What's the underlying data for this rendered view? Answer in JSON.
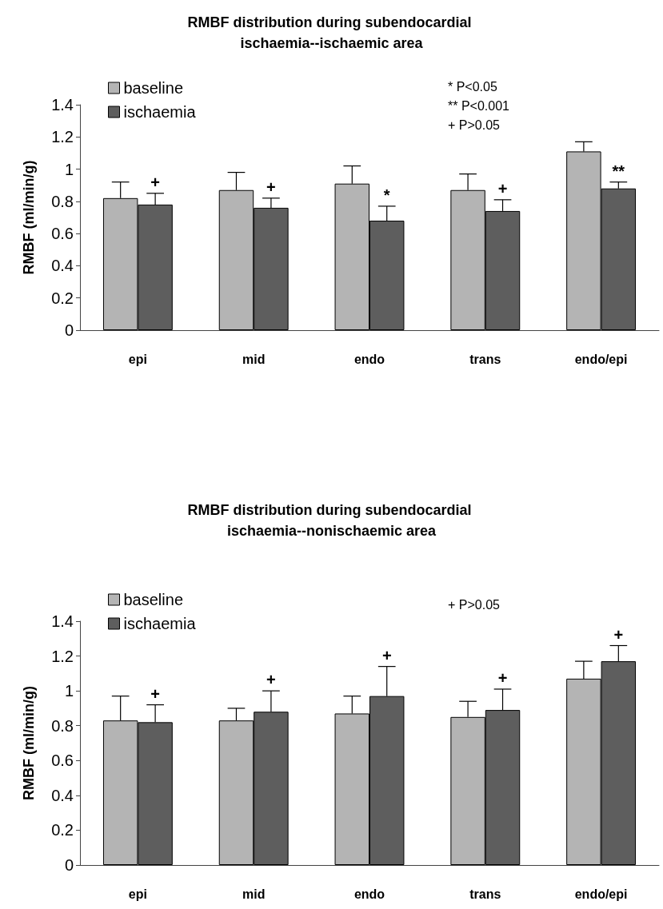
{
  "chart_data": [
    {
      "type": "bar",
      "title": "RMBF distribution during subendocardial ischaemia--ischaemic area",
      "ylabel": "RMBF (ml/min/g)",
      "categories": [
        "epi",
        "mid",
        "endo",
        "trans",
        "endo/epi"
      ],
      "series": [
        {
          "name": "baseline",
          "color": "#b4b4b4",
          "values": [
            0.82,
            0.87,
            0.91,
            0.87,
            1.11
          ],
          "errors": [
            [
              0.82,
              0.92
            ],
            [
              0.87,
              0.98
            ],
            [
              0.91,
              1.02
            ],
            [
              0.87,
              0.97
            ],
            [
              1.11,
              1.17
            ]
          ]
        },
        {
          "name": "ischaemia",
          "color": "#5e5e5e",
          "values": [
            0.78,
            0.76,
            0.68,
            0.74,
            0.88
          ],
          "errors": [
            [
              0.78,
              0.85
            ],
            [
              0.76,
              0.82
            ],
            [
              0.68,
              0.77
            ],
            [
              0.74,
              0.81
            ],
            [
              0.88,
              0.92
            ]
          ],
          "value_labels": [
            "+",
            "+",
            "*",
            "+",
            "**"
          ]
        }
      ],
      "ylim": [
        0,
        1.4
      ],
      "yticks": [
        0,
        0.2,
        0.4,
        0.6,
        0.8,
        1,
        1.2,
        1.4
      ],
      "grid": false,
      "legend": "top left",
      "annotations": [
        "* P<0.05",
        "** P<0.001",
        "+ P>0.05"
      ]
    },
    {
      "type": "bar",
      "title": "RMBF distribution during subendocardial ischaemia--nonischaemic area",
      "ylabel": "RMBF (ml/min/g)",
      "categories": [
        "epi",
        "mid",
        "endo",
        "trans",
        "endo/epi"
      ],
      "series": [
        {
          "name": "baseline",
          "color": "#b4b4b4",
          "values": [
            0.83,
            0.83,
            0.87,
            0.85,
            1.07
          ],
          "errors": [
            [
              0.83,
              0.97
            ],
            [
              0.83,
              0.9
            ],
            [
              0.87,
              0.97
            ],
            [
              0.85,
              0.94
            ],
            [
              1.07,
              1.17
            ]
          ]
        },
        {
          "name": "ischaemia",
          "color": "#5e5e5e",
          "values": [
            0.82,
            0.88,
            0.97,
            0.89,
            1.17
          ],
          "errors": [
            [
              0.82,
              0.92
            ],
            [
              0.88,
              1.0
            ],
            [
              0.97,
              1.14
            ],
            [
              0.89,
              1.01
            ],
            [
              1.17,
              1.26
            ]
          ],
          "value_labels": [
            "+",
            "+",
            "+",
            "+",
            "+"
          ]
        }
      ],
      "ylim": [
        0,
        1.4
      ],
      "yticks": [
        0,
        0.2,
        0.4,
        0.6,
        0.8,
        1,
        1.2,
        1.4
      ],
      "grid": false,
      "legend": "top left",
      "annotations": [
        "+ P>0.05"
      ]
    }
  ]
}
